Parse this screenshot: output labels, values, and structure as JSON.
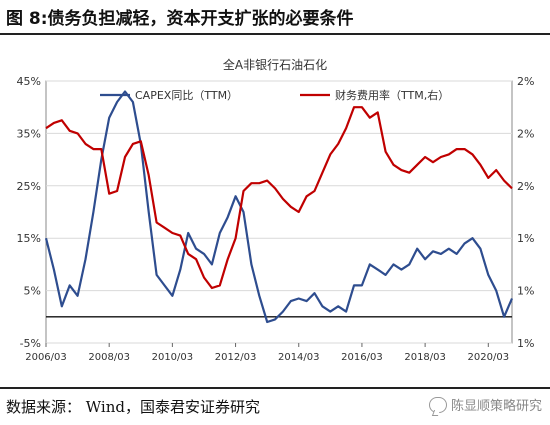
{
  "figure_title": "图 8:债务负担减轻，资本开支扩张的必要条件",
  "source": "数据来源：  Wind，国泰君安证券研究",
  "watermark": "陈显顺策略研究",
  "watermark_icon": "wechat-icon",
  "colors": {
    "capex": "#2e4d8f",
    "fin_cost": "#c00000"
  },
  "chart_data": {
    "type": "line",
    "title": "全A非银行石油石化",
    "y_left": {
      "min": -5,
      "max": 45,
      "ticks": [
        "-5%",
        "5%",
        "15%",
        "25%",
        "35%",
        "45%"
      ],
      "tick_values": [
        -5,
        5,
        15,
        25,
        35,
        45
      ]
    },
    "y_right": {
      "min": 1.0,
      "max": 2.0,
      "ticks": [
        "1%",
        "1%",
        "1%",
        "2%",
        "2%",
        "2%"
      ],
      "tick_values": [
        1.0,
        1.2,
        1.4,
        1.6,
        1.8,
        2.0
      ]
    },
    "x_ticks": [
      "2006/03",
      "2008/03",
      "2010/03",
      "2012/03",
      "2014/03",
      "2016/03",
      "2018/03",
      "2020/03"
    ],
    "x_tick_values": [
      2006.0,
      2008.0,
      2010.0,
      2012.0,
      2014.0,
      2016.0,
      2018.0,
      2020.0
    ],
    "x_range": [
      2006.0,
      2020.75
    ],
    "zero_line": 0,
    "grid": "horizontal",
    "legend_placement": "top",
    "series": [
      {
        "name": "CAPEX同比（TTM）",
        "axis": "left",
        "points": [
          [
            2006.0,
            15
          ],
          [
            2006.25,
            9
          ],
          [
            2006.5,
            2
          ],
          [
            2006.75,
            6
          ],
          [
            2007.0,
            4
          ],
          [
            2007.25,
            11
          ],
          [
            2007.5,
            20
          ],
          [
            2007.75,
            30
          ],
          [
            2008.0,
            38
          ],
          [
            2008.25,
            41
          ],
          [
            2008.5,
            43
          ],
          [
            2008.75,
            41
          ],
          [
            2009.0,
            33
          ],
          [
            2009.25,
            20
          ],
          [
            2009.5,
            8
          ],
          [
            2009.75,
            6
          ],
          [
            2010.0,
            4
          ],
          [
            2010.25,
            9
          ],
          [
            2010.5,
            16
          ],
          [
            2010.75,
            13
          ],
          [
            2011.0,
            12
          ],
          [
            2011.25,
            10
          ],
          [
            2011.5,
            16
          ],
          [
            2011.75,
            19
          ],
          [
            2012.0,
            23
          ],
          [
            2012.25,
            20
          ],
          [
            2012.5,
            10
          ],
          [
            2012.75,
            4
          ],
          [
            2013.0,
            -1
          ],
          [
            2013.25,
            -0.5
          ],
          [
            2013.5,
            1
          ],
          [
            2013.75,
            3
          ],
          [
            2014.0,
            3.5
          ],
          [
            2014.25,
            3
          ],
          [
            2014.5,
            4.5
          ],
          [
            2014.75,
            2
          ],
          [
            2015.0,
            1
          ],
          [
            2015.25,
            2
          ],
          [
            2015.5,
            1
          ],
          [
            2015.75,
            6
          ],
          [
            2016.0,
            6
          ],
          [
            2016.25,
            10
          ],
          [
            2016.5,
            9
          ],
          [
            2016.75,
            8
          ],
          [
            2017.0,
            10
          ],
          [
            2017.25,
            9
          ],
          [
            2017.5,
            10
          ],
          [
            2017.75,
            13
          ],
          [
            2018.0,
            11
          ],
          [
            2018.25,
            12.5
          ],
          [
            2018.5,
            12
          ],
          [
            2018.75,
            13
          ],
          [
            2019.0,
            12
          ],
          [
            2019.25,
            14
          ],
          [
            2019.5,
            15
          ],
          [
            2019.75,
            13
          ],
          [
            2020.0,
            8
          ],
          [
            2020.25,
            5
          ],
          [
            2020.5,
            0
          ],
          [
            2020.75,
            3.5
          ]
        ]
      },
      {
        "name": "财务费用率（TTM,右）",
        "axis": "right",
        "points": [
          [
            2006.0,
            1.82
          ],
          [
            2006.25,
            1.84
          ],
          [
            2006.5,
            1.85
          ],
          [
            2006.75,
            1.81
          ],
          [
            2007.0,
            1.8
          ],
          [
            2007.25,
            1.76
          ],
          [
            2007.5,
            1.74
          ],
          [
            2007.75,
            1.74
          ],
          [
            2008.0,
            1.57
          ],
          [
            2008.25,
            1.58
          ],
          [
            2008.5,
            1.71
          ],
          [
            2008.75,
            1.76
          ],
          [
            2009.0,
            1.77
          ],
          [
            2009.25,
            1.64
          ],
          [
            2009.5,
            1.46
          ],
          [
            2009.75,
            1.44
          ],
          [
            2010.0,
            1.42
          ],
          [
            2010.25,
            1.41
          ],
          [
            2010.5,
            1.34
          ],
          [
            2010.75,
            1.32
          ],
          [
            2011.0,
            1.25
          ],
          [
            2011.25,
            1.21
          ],
          [
            2011.5,
            1.22
          ],
          [
            2011.75,
            1.32
          ],
          [
            2012.0,
            1.4
          ],
          [
            2012.25,
            1.58
          ],
          [
            2012.5,
            1.61
          ],
          [
            2012.75,
            1.61
          ],
          [
            2013.0,
            1.62
          ],
          [
            2013.25,
            1.59
          ],
          [
            2013.5,
            1.55
          ],
          [
            2013.75,
            1.52
          ],
          [
            2014.0,
            1.5
          ],
          [
            2014.25,
            1.56
          ],
          [
            2014.5,
            1.58
          ],
          [
            2014.75,
            1.65
          ],
          [
            2015.0,
            1.72
          ],
          [
            2015.25,
            1.76
          ],
          [
            2015.5,
            1.82
          ],
          [
            2015.75,
            1.9
          ],
          [
            2016.0,
            1.9
          ],
          [
            2016.25,
            1.86
          ],
          [
            2016.5,
            1.88
          ],
          [
            2016.75,
            1.73
          ],
          [
            2017.0,
            1.68
          ],
          [
            2017.25,
            1.66
          ],
          [
            2017.5,
            1.65
          ],
          [
            2017.75,
            1.68
          ],
          [
            2018.0,
            1.71
          ],
          [
            2018.25,
            1.69
          ],
          [
            2018.5,
            1.71
          ],
          [
            2018.75,
            1.72
          ],
          [
            2019.0,
            1.74
          ],
          [
            2019.25,
            1.74
          ],
          [
            2019.5,
            1.72
          ],
          [
            2019.75,
            1.68
          ],
          [
            2020.0,
            1.63
          ],
          [
            2020.25,
            1.66
          ],
          [
            2020.5,
            1.62
          ],
          [
            2020.75,
            1.59
          ]
        ]
      }
    ]
  }
}
